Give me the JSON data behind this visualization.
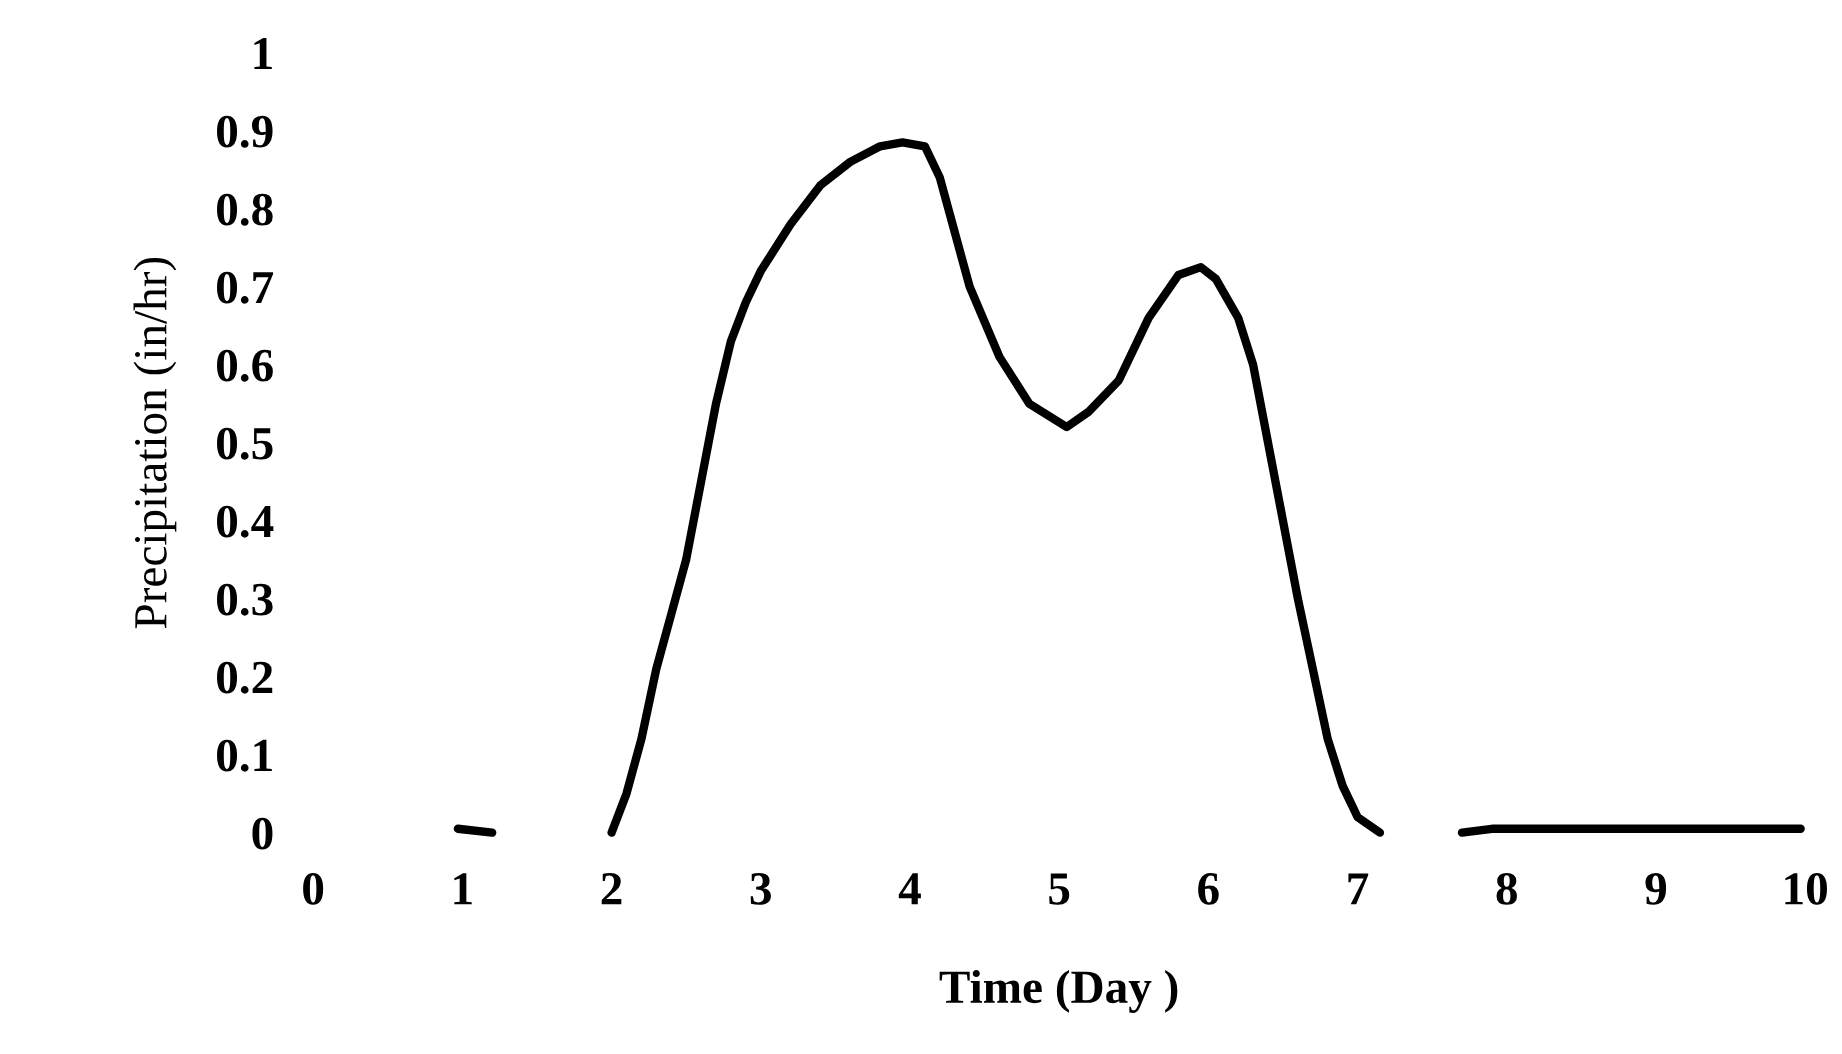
{
  "chart_data": {
    "type": "line",
    "xlabel": "Time (Day )",
    "ylabel": "Precipitation (in/hr)",
    "x": [
      0.97,
      1.2,
      1.5,
      2.0,
      2.1,
      2.2,
      2.3,
      2.4,
      2.5,
      2.6,
      2.7,
      2.8,
      2.9,
      3.0,
      3.2,
      3.4,
      3.6,
      3.8,
      3.95,
      4.1,
      4.2,
      4.4,
      4.6,
      4.8,
      5.05,
      5.2,
      5.4,
      5.6,
      5.8,
      5.95,
      6.05,
      6.2,
      6.3,
      6.4,
      6.5,
      6.6,
      6.7,
      6.8,
      6.9,
      7.0,
      7.15,
      7.4,
      7.7,
      7.9,
      8.5,
      9.0,
      9.5,
      9.97
    ],
    "series": [
      {
        "color": "#000000",
        "values": [
          0.005,
          0,
          null,
          0,
          0.05,
          0.12,
          0.21,
          0.28,
          0.35,
          0.45,
          0.55,
          0.63,
          0.68,
          0.72,
          0.78,
          0.83,
          0.86,
          0.88,
          0.885,
          0.88,
          0.84,
          0.7,
          0.61,
          0.55,
          0.52,
          0.54,
          0.58,
          0.66,
          0.715,
          0.725,
          0.71,
          0.66,
          0.6,
          0.5,
          0.4,
          0.3,
          0.21,
          0.12,
          0.06,
          0.02,
          0,
          null,
          0,
          0.005,
          0.005,
          0.005,
          0.005,
          0.005
        ]
      }
    ],
    "xlim": [
      0,
      10
    ],
    "ylim": [
      0,
      1
    ],
    "xticks": [
      0,
      1,
      2,
      3,
      4,
      5,
      6,
      7,
      8,
      9,
      10
    ],
    "yticks": [
      0,
      0.1,
      0.2,
      0.3,
      0.4,
      0.5,
      0.6,
      0.7,
      0.8,
      0.9,
      1
    ],
    "grid": false,
    "legend": false,
    "marker": "none",
    "line_style": "solid"
  }
}
